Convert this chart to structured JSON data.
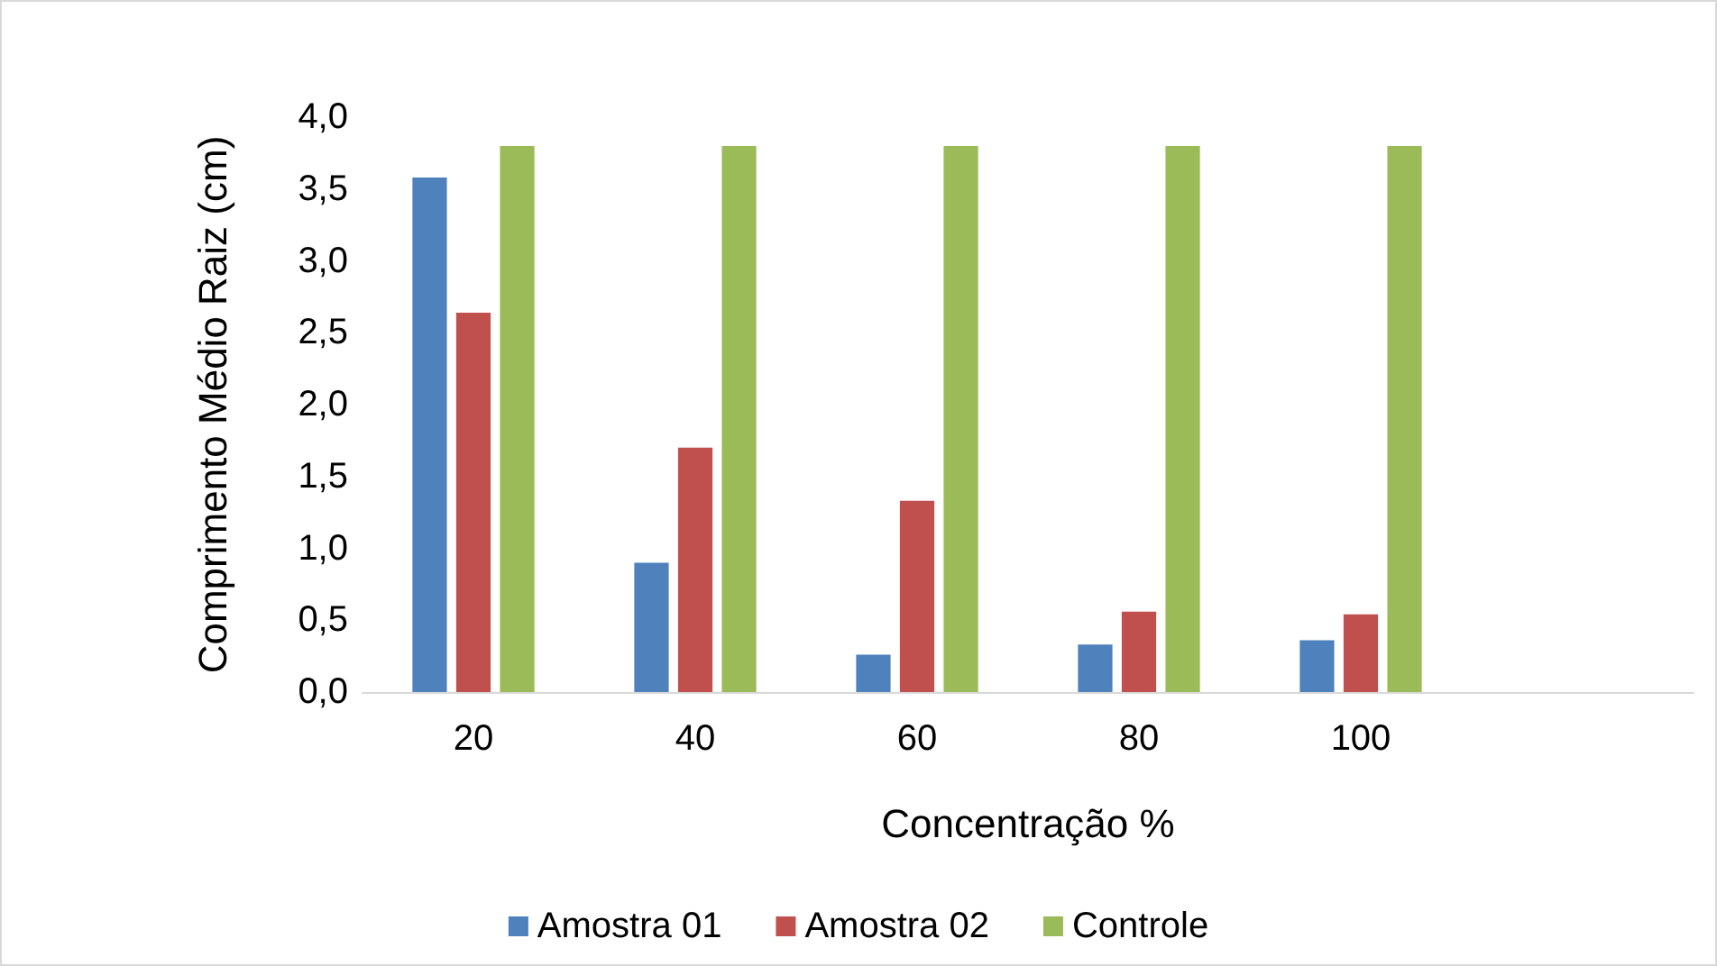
{
  "chart_data": {
    "type": "bar",
    "xlabel": "Concentração %",
    "ylabel": "Comprimento Médio Raiz (cm)",
    "categories": [
      "20",
      "40",
      "60",
      "80",
      "100",
      null
    ],
    "series": [
      {
        "name": "Amostra 01",
        "color": "#4f81bd",
        "values": [
          3.58,
          0.9,
          0.26,
          0.33,
          0.36,
          null
        ]
      },
      {
        "name": "Amostra 02",
        "color": "#c0504d",
        "values": [
          2.64,
          1.7,
          1.33,
          0.56,
          0.54,
          null
        ]
      },
      {
        "name": "Controle",
        "color": "#9bbb59",
        "values": [
          3.8,
          3.8,
          3.8,
          3.8,
          3.8,
          null
        ]
      }
    ],
    "ylim": [
      0,
      4
    ],
    "yticks": [
      {
        "value": 0,
        "label": "0,0"
      },
      {
        "value": 0.5,
        "label": "0,5"
      },
      {
        "value": 1,
        "label": "1,0"
      },
      {
        "value": 1.5,
        "label": "1,5"
      },
      {
        "value": 2,
        "label": "2,0"
      },
      {
        "value": 2.5,
        "label": "2,5"
      },
      {
        "value": 3,
        "label": "3,0"
      },
      {
        "value": 3.5,
        "label": "3,5"
      },
      {
        "value": 4,
        "label": "4,0"
      }
    ],
    "grid": false,
    "legend": "bottom"
  }
}
